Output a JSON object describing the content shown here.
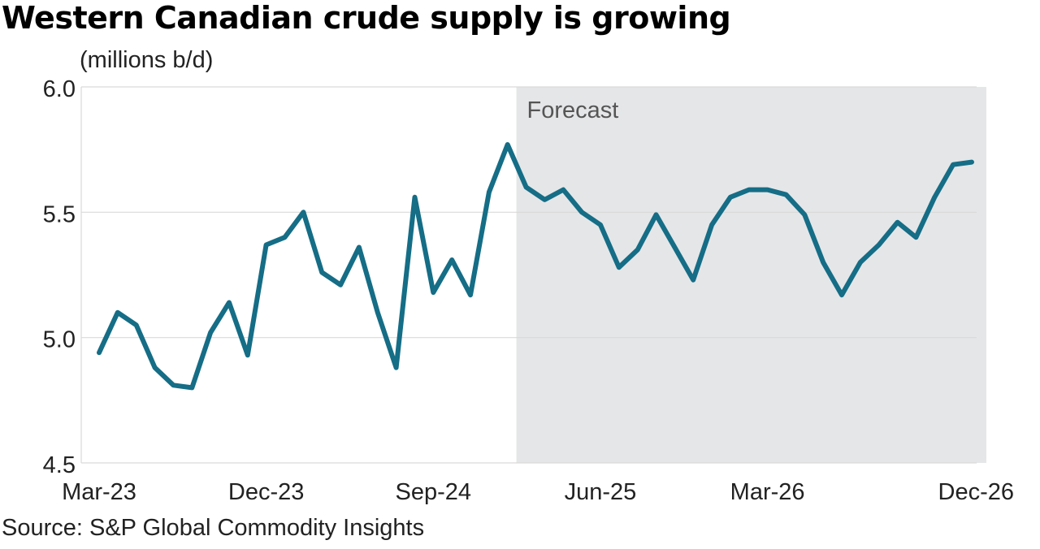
{
  "chart_data": {
    "type": "line",
    "title": "Western Canadian crude supply is growing",
    "unit_label": "(millions b/d)",
    "source": "Source: S&P Global Commodity Insights",
    "xlabel": "",
    "ylabel": "",
    "ylim": [
      4.5,
      6.0
    ],
    "y_ticks": [
      "6.0",
      "5.5",
      "5.0",
      "4.5"
    ],
    "x_tick_labels": [
      "Mar-23",
      "Dec-23",
      "Sep-24",
      "Jun-25",
      "Mar-26",
      "Dec-26"
    ],
    "x_start": "Mar-23",
    "x_end": "Dec-26",
    "forecast_label": "Forecast",
    "forecast_start": "Feb-25",
    "grid": "horizontal",
    "colors": {
      "line": "#156d86",
      "forecast_shade": "#e5e6e8",
      "grid": "#d9d9d9"
    },
    "series": [
      {
        "values": [
          4.94,
          5.1,
          5.05,
          4.88,
          4.81,
          4.8,
          5.02,
          5.14,
          4.93,
          5.37,
          5.4,
          5.5,
          5.26,
          5.21,
          5.36,
          5.1,
          4.88,
          5.56,
          5.18,
          5.31,
          5.17,
          5.58,
          5.77,
          5.6,
          5.55,
          5.59,
          5.5,
          5.45,
          5.28,
          5.35,
          5.49,
          5.36,
          5.23,
          5.45,
          5.56,
          5.59,
          5.59,
          5.57,
          5.49,
          5.3,
          5.17,
          5.3,
          5.37,
          5.46,
          5.4,
          5.56,
          5.69,
          5.7
        ]
      }
    ]
  }
}
